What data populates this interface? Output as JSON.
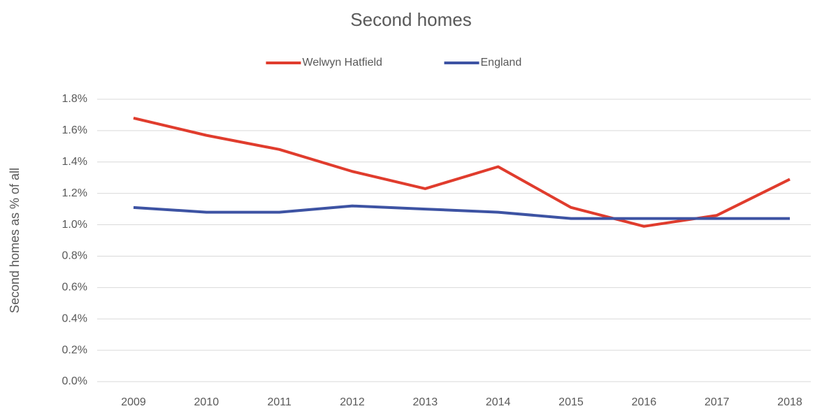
{
  "chart_data": {
    "type": "line",
    "title": "Second homes",
    "y_label": "Second homes as % of all",
    "categories": [
      "2009",
      "2010",
      "2011",
      "2012",
      "2013",
      "2014",
      "2015",
      "2016",
      "2017",
      "2018"
    ],
    "series": [
      {
        "name": "Welwyn Hatfield",
        "color": "#e03c2d",
        "values": [
          1.68,
          1.57,
          1.48,
          1.34,
          1.23,
          1.37,
          1.11,
          0.99,
          1.06,
          1.29
        ]
      },
      {
        "name": "England",
        "color": "#3d53a3",
        "values": [
          1.11,
          1.08,
          1.08,
          1.12,
          1.1,
          1.08,
          1.04,
          1.04,
          1.04,
          1.04
        ]
      }
    ],
    "ylim": [
      0,
      1.8
    ],
    "yticks": [
      {
        "value": 0,
        "label": "0.0%"
      },
      {
        "value": 0.2,
        "label": "0.2%"
      },
      {
        "value": 0.4,
        "label": "0.4%"
      },
      {
        "value": 0.6,
        "label": "0.6%"
      },
      {
        "value": 0.8,
        "label": "0.8%"
      },
      {
        "value": 1.0,
        "label": "1.0%"
      },
      {
        "value": 1.2,
        "label": "1.2%"
      },
      {
        "value": 1.4,
        "label": "1.4%"
      },
      {
        "value": 1.6,
        "label": "1.6%"
      },
      {
        "value": 1.8,
        "label": "1.8%"
      }
    ],
    "grid": true,
    "legend": "top"
  }
}
